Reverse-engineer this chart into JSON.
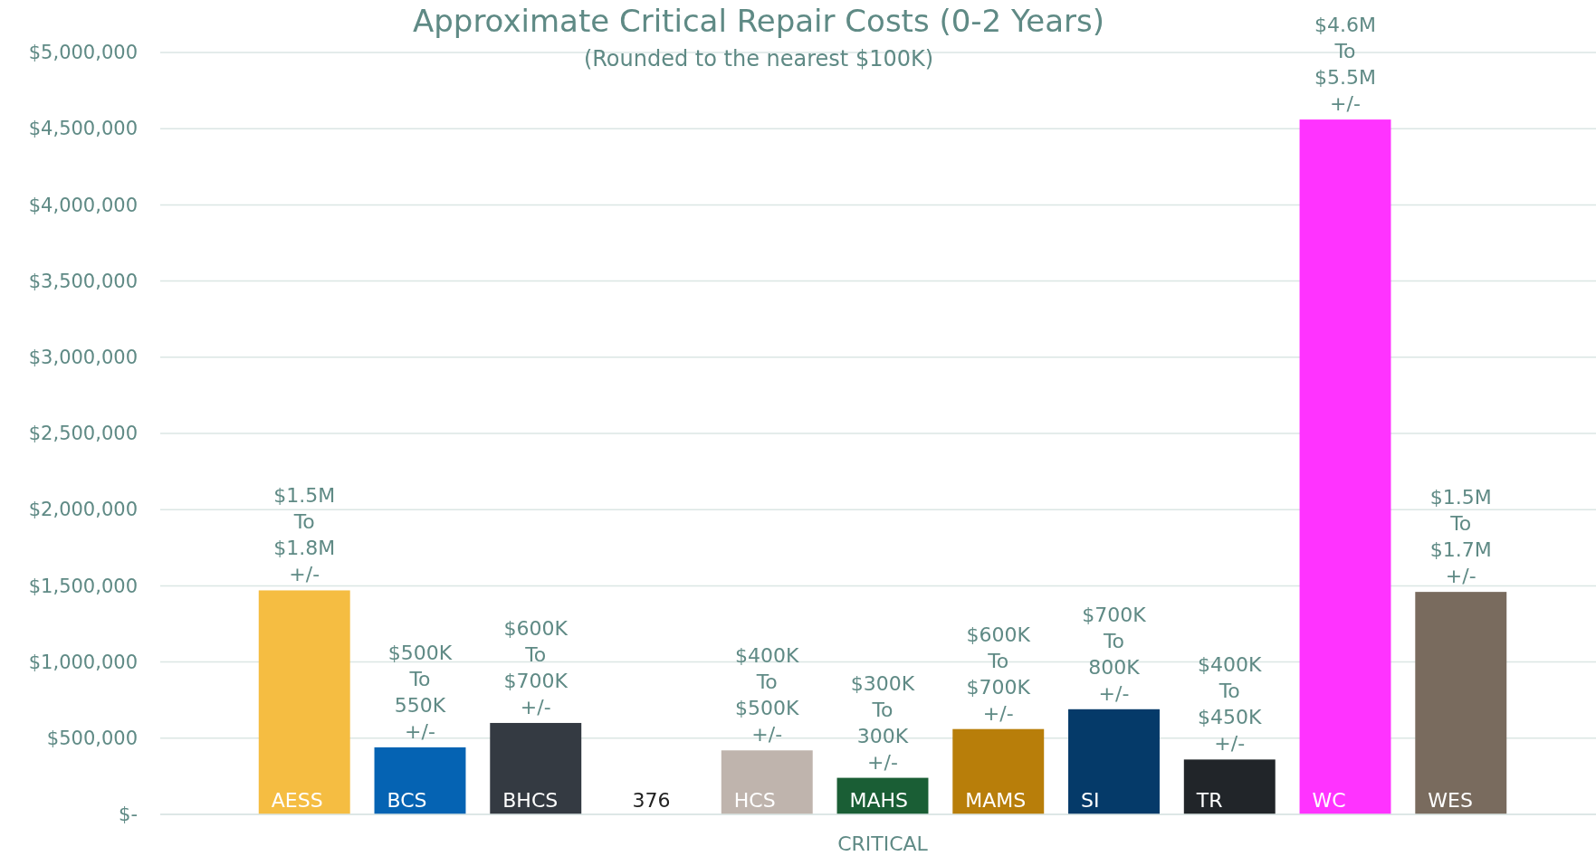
{
  "chart_data": {
    "type": "bar",
    "title": "Approximate Critical Repair Costs (0-2 Years)",
    "subtitle": "(Rounded to the nearest $100K)",
    "xlabel": "CRITICAL",
    "categories": [
      "AESS",
      "BCS",
      "BHCS",
      "376",
      "HCS",
      "MAHS",
      "MAMS",
      "SI",
      "TR",
      "WC",
      "WES"
    ],
    "values": [
      1470000,
      440000,
      600000,
      0,
      420000,
      240000,
      560000,
      690000,
      360000,
      4560000,
      1460000
    ],
    "colors": [
      "#f5bd42",
      "#0563b3",
      "#343a42",
      "#ffffff",
      "#bfb4ad",
      "#1a5e35",
      "#b87e0a",
      "#053a69",
      "#212529",
      "#ff33ff",
      "#796b5e"
    ],
    "annotations": [
      {
        "text": "$1.5M\nTo\n$1.8M\n+/-",
        "x": "AESS",
        "y": 1470000
      },
      {
        "text": "$500K\nTo\n550K\n+/-",
        "x": "BCS",
        "y": 440000
      },
      {
        "text": "$600K\nTo\n$700K\n+/-",
        "x": "BHCS",
        "y": 600000
      },
      {
        "text": "$400K\nTo\n$500K\n+/-",
        "x": "HCS",
        "y": 420000
      },
      {
        "text": "$300K\nTo\n300K\n+/-",
        "x": "MAHS",
        "y": 240000
      },
      {
        "text": "$600K\nTo\n$700K\n+/-",
        "x": "MAMS",
        "y": 560000
      },
      {
        "text": "$700K\nTo\n800K\n+/-",
        "x": "SI",
        "y": 690000
      },
      {
        "text": "$400K\nTo\n$450K\n+/-",
        "x": "TR",
        "y": 360000
      },
      {
        "text": "$4.6M\nTo\n$5.5M\n+/-",
        "x": "WC",
        "y": 4560000
      },
      {
        "text": "$1.5M\nTo\n$1.7M\n+/-",
        "x": "WES",
        "y": 1460000
      }
    ],
    "ylim": [
      0,
      5000000
    ],
    "yticks": [
      {
        "value": 0,
        "label": "$-"
      },
      {
        "value": 500000,
        "label": "$500,000"
      },
      {
        "value": 1000000,
        "label": "$1,000,000"
      },
      {
        "value": 1500000,
        "label": "$1,500,000"
      },
      {
        "value": 2000000,
        "label": "$2,000,000"
      },
      {
        "value": 2500000,
        "label": "$2,500,000"
      },
      {
        "value": 3000000,
        "label": "$3,000,000"
      },
      {
        "value": 3500000,
        "label": "$3,500,000"
      },
      {
        "value": 4000000,
        "label": "$4,000,000"
      },
      {
        "value": 4500000,
        "label": "$4,500,000"
      },
      {
        "value": 5000000,
        "label": "$5,000,000"
      }
    ],
    "grid": "y"
  }
}
